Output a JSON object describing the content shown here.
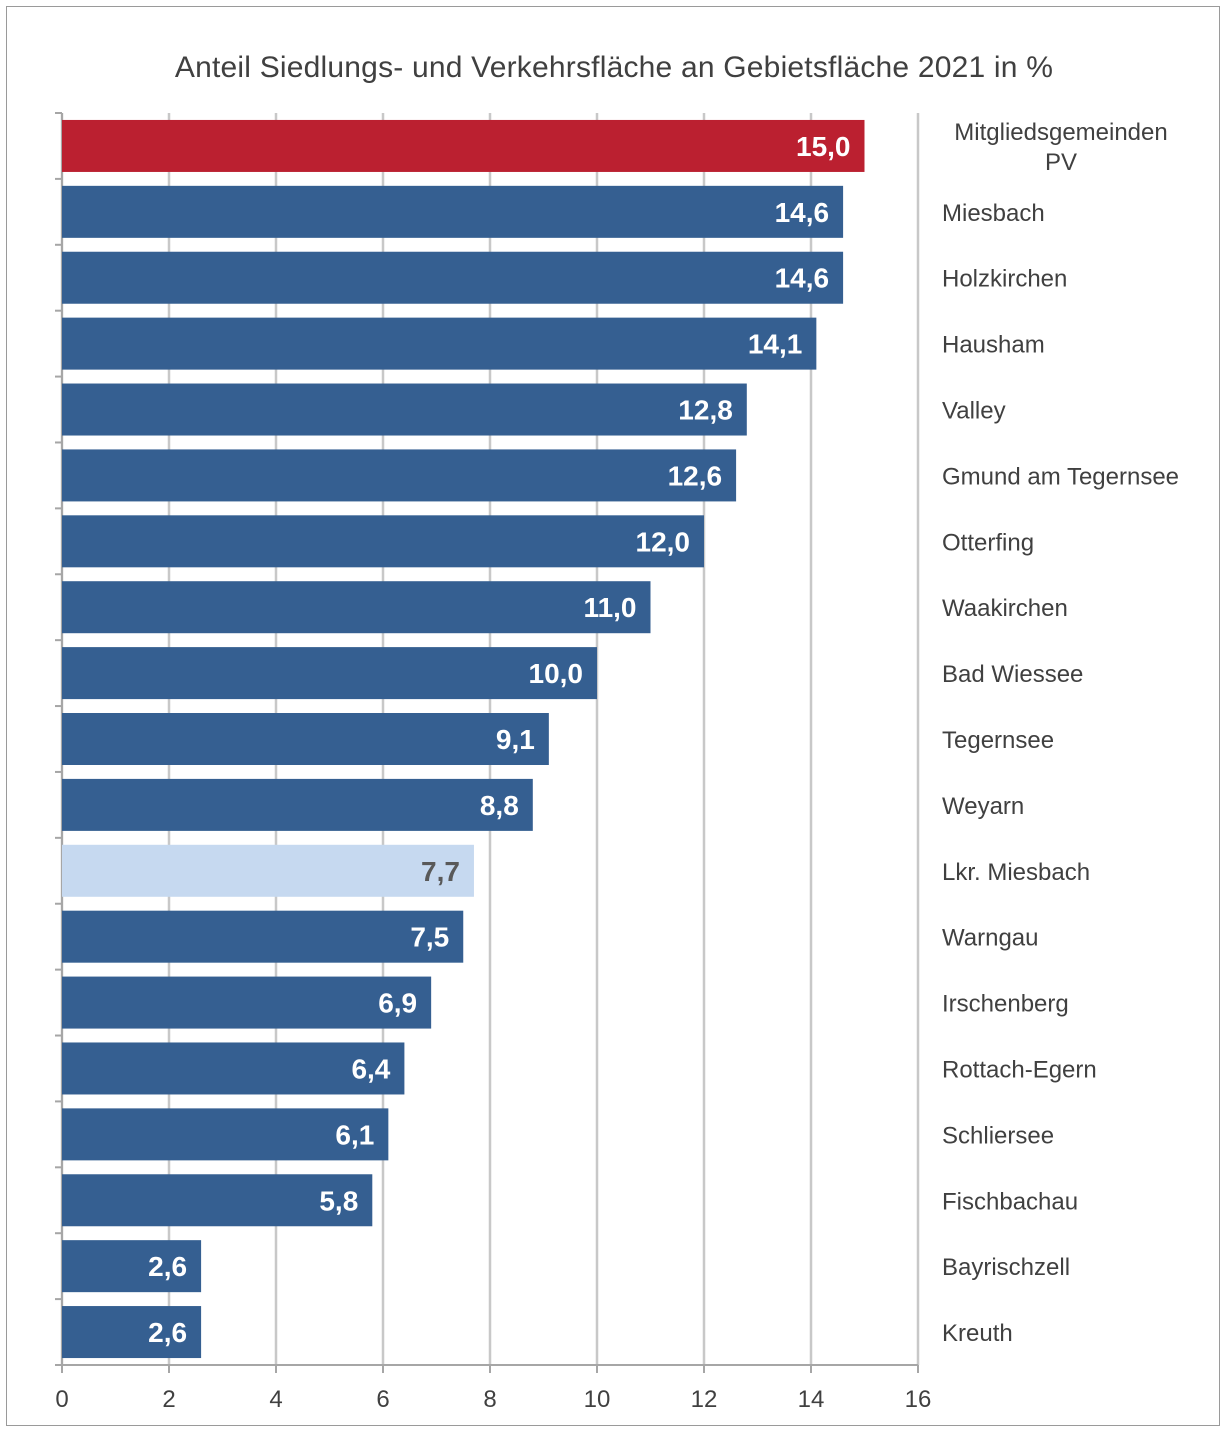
{
  "chart_data": {
    "type": "bar",
    "orientation": "horizontal",
    "title": "Anteil Siedlungs- und Verkehrsfläche an Gebietsfläche 2021 in %",
    "categories": [
      "Mitgliedsgemeinden PV",
      "Miesbach",
      "Holzkirchen",
      "Hausham",
      "Valley",
      "Gmund am Tegernsee",
      "Otterfing",
      "Waakirchen",
      "Bad Wiessee",
      "Tegernsee",
      "Weyarn",
      "Lkr. Miesbach",
      "Warngau",
      "Irschenberg",
      "Rottach-Egern",
      "Schliersee",
      "Fischbachau",
      "Bayrischzell",
      "Kreuth"
    ],
    "values": [
      15.0,
      14.6,
      14.6,
      14.1,
      12.8,
      12.6,
      12.0,
      11.0,
      10.0,
      9.1,
      8.8,
      7.7,
      7.5,
      6.9,
      6.4,
      6.1,
      5.8,
      2.6,
      2.6
    ],
    "value_labels": [
      "15,0",
      "14,6",
      "14,6",
      "14,1",
      "12,8",
      "12,6",
      "12,0",
      "11,0",
      "10,0",
      "9,1",
      "8,8",
      "7,7",
      "7,5",
      "6,9",
      "6,4",
      "6,1",
      "5,8",
      "2,6",
      "2,6"
    ],
    "bar_colors": [
      "#bb2030",
      "#355f91",
      "#355f91",
      "#355f91",
      "#355f91",
      "#355f91",
      "#355f91",
      "#355f91",
      "#355f91",
      "#355f91",
      "#355f91",
      "#c6d9f0",
      "#355f91",
      "#355f91",
      "#355f91",
      "#355f91",
      "#355f91",
      "#355f91",
      "#355f91"
    ],
    "label_colors": [
      "#ffffff",
      "#ffffff",
      "#ffffff",
      "#ffffff",
      "#ffffff",
      "#ffffff",
      "#ffffff",
      "#ffffff",
      "#ffffff",
      "#ffffff",
      "#ffffff",
      "#595959",
      "#ffffff",
      "#ffffff",
      "#ffffff",
      "#ffffff",
      "#ffffff",
      "#ffffff",
      "#ffffff"
    ],
    "xlim": [
      0,
      16
    ],
    "xticks": [
      "0",
      "2",
      "4",
      "6",
      "8",
      "10",
      "12",
      "14",
      "16"
    ],
    "grid": true,
    "legend": "none"
  }
}
